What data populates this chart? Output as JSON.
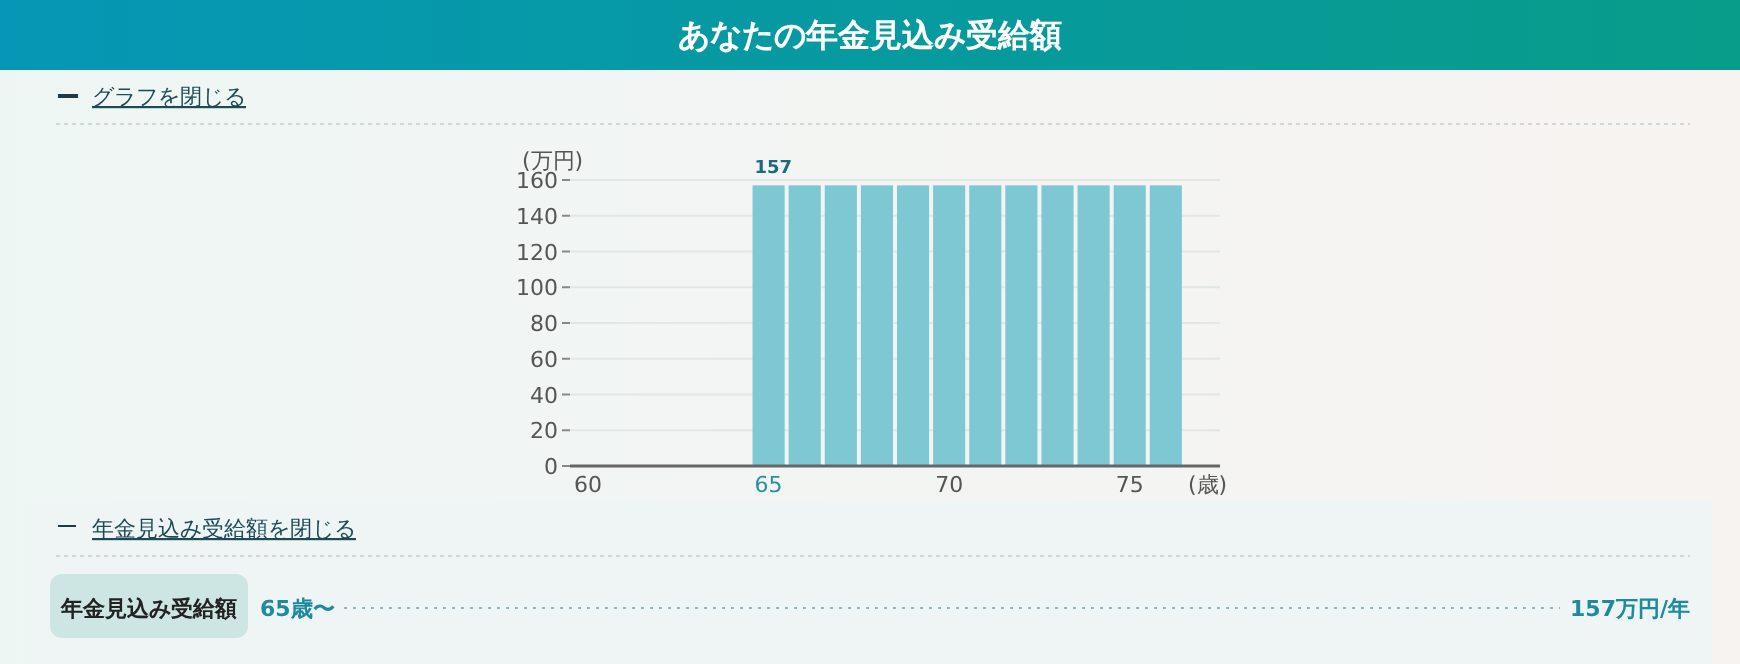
{
  "chart_data": {
    "type": "bar",
    "title": "あなたの年金見込み受給額",
    "xlabel": "(歳)",
    "ylabel": "(万円)",
    "x": [
      65,
      66,
      67,
      68,
      69,
      70,
      71,
      72,
      73,
      74,
      75,
      76
    ],
    "values": [
      157,
      157,
      157,
      157,
      157,
      157,
      157,
      157,
      157,
      157,
      157,
      157
    ],
    "value_labels": [
      "157",
      null,
      null,
      null,
      null,
      null,
      null,
      null,
      null,
      null,
      null,
      null
    ],
    "color": "#7ec8d3",
    "xlim": [
      59.5,
      77.5
    ],
    "xticks": [
      60,
      65,
      70,
      75
    ],
    "ylim": [
      0,
      160
    ],
    "yticks": [
      0,
      20,
      40,
      60,
      80,
      100,
      120,
      140,
      160
    ],
    "grid": "y",
    "annotations": [
      "グラフを閉じる",
      "年金見込み受給額を閉じる",
      "年金見込み受給額",
      "65歳〜",
      "157万円/年"
    ]
  }
}
